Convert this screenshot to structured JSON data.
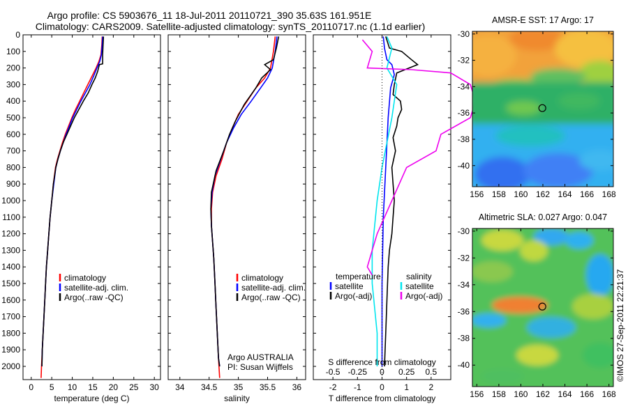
{
  "title": {
    "line1": "Argo profile: CS 5903676_11 18-Jul-2011 20110721_390 35.63S 161.951E",
    "line2": "Climatology: CARS2009. Satellite-adjusted climatology: synTS_20110717.nc (1.1d earlier)"
  },
  "watermark": "©IMOS 27-Sep-2011 22:21:37",
  "colors": {
    "climatology": "#ff0000",
    "satellite": "#0000ff",
    "argo": "#000000",
    "sal_satellite": "#00e5ee",
    "sal_argo": "#ee00ee",
    "frame": "#000000"
  },
  "chart_data": [
    {
      "type": "line",
      "id": "temperature",
      "xlabel": "temperature (deg C)",
      "xlim": [
        -2,
        31.5
      ],
      "ylim": [
        2080,
        0
      ],
      "yticks": [
        0,
        100,
        200,
        300,
        400,
        500,
        600,
        700,
        800,
        900,
        1000,
        1100,
        1200,
        1300,
        1400,
        1500,
        1600,
        1700,
        1800,
        1900,
        2000
      ],
      "xticks": [
        0,
        5,
        10,
        15,
        20,
        25,
        30
      ],
      "legend": [
        "climatology",
        "satellite-adj. clim.",
        "Argo(..raw -QC)"
      ],
      "series": [
        {
          "name": "climatology",
          "color": "#ff0000",
          "points": [
            [
              17.3,
              10
            ],
            [
              17.2,
              60
            ],
            [
              17.0,
              120
            ],
            [
              16.5,
              160
            ],
            [
              15.8,
              200
            ],
            [
              14.8,
              250
            ],
            [
              13.8,
              300
            ],
            [
              12.8,
              350
            ],
            [
              11.8,
              400
            ],
            [
              10.8,
              450
            ],
            [
              9.9,
              500
            ],
            [
              9.1,
              550
            ],
            [
              8.3,
              600
            ],
            [
              7.6,
              650
            ],
            [
              7.0,
              700
            ],
            [
              6.4,
              750
            ],
            [
              5.9,
              800
            ],
            [
              5.4,
              900
            ],
            [
              5.0,
              1000
            ],
            [
              4.6,
              1100
            ],
            [
              4.3,
              1200
            ],
            [
              4.0,
              1300
            ],
            [
              3.7,
              1400
            ],
            [
              3.5,
              1500
            ],
            [
              3.3,
              1600
            ],
            [
              3.1,
              1700
            ],
            [
              2.9,
              1800
            ],
            [
              2.7,
              1900
            ],
            [
              2.5,
              2000
            ],
            [
              2.4,
              2070
            ]
          ]
        },
        {
          "name": "satellite-adj. clim.",
          "color": "#0000ff",
          "points": [
            [
              17.4,
              10
            ],
            [
              17.3,
              60
            ],
            [
              17.1,
              120
            ],
            [
              16.7,
              160
            ],
            [
              16.0,
              200
            ],
            [
              15.2,
              250
            ],
            [
              14.3,
              300
            ],
            [
              13.2,
              350
            ],
            [
              12.1,
              400
            ],
            [
              11.1,
              450
            ],
            [
              10.1,
              500
            ],
            [
              9.3,
              550
            ],
            [
              8.5,
              600
            ],
            [
              7.8,
              650
            ],
            [
              7.1,
              700
            ],
            [
              6.5,
              750
            ],
            [
              6.0,
              800
            ],
            [
              5.5,
              900
            ],
            [
              5.0,
              1000
            ],
            [
              4.6,
              1100
            ],
            [
              4.3,
              1200
            ],
            [
              4.0,
              1300
            ],
            [
              3.7,
              1400
            ],
            [
              3.5,
              1500
            ],
            [
              3.3,
              1600
            ],
            [
              3.1,
              1700
            ],
            [
              2.9,
              1800
            ],
            [
              2.7,
              1900
            ],
            [
              2.6,
              2000
            ]
          ]
        },
        {
          "name": "Argo(..raw -QC)",
          "color": "#000000",
          "points": [
            [
              17.6,
              10
            ],
            [
              17.5,
              60
            ],
            [
              17.4,
              120
            ],
            [
              17.4,
              175
            ],
            [
              16.6,
              180
            ],
            [
              16.2,
              220
            ],
            [
              15.6,
              260
            ],
            [
              14.8,
              300
            ],
            [
              13.9,
              350
            ],
            [
              12.7,
              400
            ],
            [
              11.6,
              450
            ],
            [
              10.5,
              500
            ],
            [
              9.6,
              550
            ],
            [
              8.7,
              600
            ],
            [
              7.8,
              650
            ],
            [
              7.1,
              700
            ],
            [
              6.5,
              750
            ],
            [
              6.0,
              800
            ],
            [
              5.4,
              900
            ],
            [
              5.0,
              1000
            ],
            [
              4.6,
              1100
            ],
            [
              4.3,
              1200
            ],
            [
              4.0,
              1300
            ],
            [
              3.7,
              1400
            ],
            [
              3.5,
              1500
            ],
            [
              3.3,
              1600
            ],
            [
              3.1,
              1700
            ],
            [
              2.9,
              1800
            ],
            [
              2.7,
              1900
            ],
            [
              2.6,
              2000
            ]
          ]
        }
      ]
    },
    {
      "type": "line",
      "id": "salinity",
      "xlabel": "salinity",
      "xlim": [
        33.8,
        36.15
      ],
      "ylim": [
        2080,
        0
      ],
      "xticks": [
        34,
        34.5,
        35,
        35.5,
        36
      ],
      "legend": [
        "climatology",
        "satellite-adj. clim.",
        "Argo(..raw -QC)"
      ],
      "annotation": {
        "line1": "Argo AUSTRALIA",
        "line2": "PI: Susan Wijffels"
      },
      "series": [
        {
          "name": "climatology",
          "color": "#ff0000",
          "points": [
            [
              35.63,
              10
            ],
            [
              35.6,
              100
            ],
            [
              35.55,
              200
            ],
            [
              35.45,
              260
            ],
            [
              35.3,
              320
            ],
            [
              35.15,
              400
            ],
            [
              35.0,
              480
            ],
            [
              34.9,
              560
            ],
            [
              34.8,
              650
            ],
            [
              34.72,
              750
            ],
            [
              34.62,
              850
            ],
            [
              34.56,
              950
            ],
            [
              34.54,
              1050
            ],
            [
              34.54,
              1150
            ],
            [
              34.56,
              1250
            ],
            [
              34.58,
              1350
            ],
            [
              34.6,
              1500
            ],
            [
              34.62,
              1650
            ],
            [
              34.64,
              1800
            ],
            [
              34.66,
              1950
            ],
            [
              34.68,
              2070
            ]
          ]
        },
        {
          "name": "satellite-adj. clim.",
          "color": "#0000ff",
          "points": [
            [
              35.66,
              10
            ],
            [
              35.63,
              100
            ],
            [
              35.58,
              200
            ],
            [
              35.5,
              260
            ],
            [
              35.38,
              320
            ],
            [
              35.22,
              400
            ],
            [
              35.05,
              480
            ],
            [
              34.92,
              560
            ],
            [
              34.8,
              650
            ],
            [
              34.7,
              750
            ],
            [
              34.6,
              850
            ],
            [
              34.55,
              950
            ],
            [
              34.53,
              1050
            ],
            [
              34.54,
              1150
            ],
            [
              34.56,
              1250
            ],
            [
              34.58,
              1350
            ],
            [
              34.6,
              1500
            ],
            [
              34.62,
              1650
            ],
            [
              34.64,
              1800
            ],
            [
              34.66,
              1950
            ],
            [
              34.68,
              2000
            ]
          ]
        },
        {
          "name": "Argo(..raw -QC)",
          "color": "#000000",
          "points": [
            [
              35.69,
              10
            ],
            [
              35.65,
              80
            ],
            [
              35.6,
              150
            ],
            [
              35.45,
              180
            ],
            [
              35.55,
              210
            ],
            [
              35.4,
              260
            ],
            [
              35.3,
              320
            ],
            [
              35.1,
              420
            ],
            [
              34.95,
              520
            ],
            [
              34.85,
              600
            ],
            [
              34.75,
              700
            ],
            [
              34.62,
              820
            ],
            [
              34.54,
              950
            ],
            [
              34.53,
              1050
            ],
            [
              34.54,
              1150
            ],
            [
              34.56,
              1250
            ],
            [
              34.58,
              1350
            ],
            [
              34.6,
              1500
            ],
            [
              34.62,
              1650
            ],
            [
              34.64,
              1800
            ],
            [
              34.66,
              1950
            ],
            [
              34.68,
              2000
            ]
          ]
        }
      ]
    },
    {
      "type": "line",
      "id": "difference",
      "xlabel": "T difference from climatology",
      "x2label": "S difference from climatology",
      "xlim": [
        -2.8,
        2.8
      ],
      "ylim": [
        2080,
        0
      ],
      "xticks": [
        -2,
        -1,
        0,
        1,
        2
      ],
      "x2ticks": [
        "-0.5",
        "-0.25",
        "0",
        "0.25",
        "0.5"
      ],
      "legend_temperature": {
        "header": "temperature",
        "items": [
          "satellite",
          "Argo(-adj)"
        ]
      },
      "legend_salinity": {
        "header": "salinity",
        "items": [
          "satellite",
          "Argo(-adj)"
        ]
      },
      "series": [
        {
          "name": "satellite",
          "group": "temperature",
          "color": "#0000ff",
          "points": [
            [
              0.05,
              10
            ],
            [
              0.1,
              80
            ],
            [
              0.2,
              150
            ],
            [
              0.4,
              180
            ],
            [
              0.5,
              240
            ],
            [
              0.35,
              320
            ],
            [
              0.25,
              500
            ],
            [
              0.15,
              800
            ],
            [
              0.05,
              1100
            ],
            [
              0,
              1500
            ],
            [
              0,
              2000
            ]
          ]
        },
        {
          "name": "Argo(-adj)",
          "group": "temperature",
          "color": "#000000",
          "points": [
            [
              0.15,
              10
            ],
            [
              0.3,
              80
            ],
            [
              0.8,
              100
            ],
            [
              1.2,
              150
            ],
            [
              1.45,
              180
            ],
            [
              0.6,
              230
            ],
            [
              0.5,
              300
            ],
            [
              0.45,
              360
            ],
            [
              0.75,
              400
            ],
            [
              0.8,
              450
            ],
            [
              0.65,
              500
            ],
            [
              0.6,
              550
            ],
            [
              0.45,
              620
            ],
            [
              0.55,
              700
            ],
            [
              0.4,
              800
            ],
            [
              0.45,
              900
            ],
            [
              0.5,
              1000
            ],
            [
              0.45,
              1100
            ],
            [
              0.4,
              1200
            ],
            [
              0.3,
              1300
            ],
            [
              0.25,
              1400
            ],
            [
              0.2,
              1600
            ],
            [
              0.15,
              1800
            ],
            [
              0.1,
              2000
            ]
          ]
        },
        {
          "name": "satellite",
          "group": "salinity",
          "color": "#00e5ee",
          "points": [
            [
              0.05,
              10
            ],
            [
              0.1,
              80
            ],
            [
              0.05,
              200
            ],
            [
              0.15,
              300
            ],
            [
              0.1,
              500
            ],
            [
              0,
              800
            ],
            [
              -0.05,
              1000
            ],
            [
              -0.1,
              1300
            ],
            [
              -0.1,
              1500
            ],
            [
              -0.05,
              1800
            ],
            [
              -0.05,
              2000
            ]
          ]
        },
        {
          "name": "Argo(-adj)",
          "group": "salinity",
          "color": "#ee00ee",
          "points": [
            [
              -0.2,
              30
            ],
            [
              -0.1,
              100
            ],
            [
              -0.15,
              200
            ],
            [
              0.3,
              210
            ],
            [
              0.7,
              230
            ],
            [
              0.9,
              300
            ],
            [
              0.95,
              400
            ],
            [
              0.9,
              500
            ],
            [
              0.6,
              600
            ],
            [
              0.55,
              700
            ],
            [
              0.25,
              800
            ],
            [
              0.1,
              1000
            ],
            [
              -0.05,
              1200
            ],
            [
              -0.1,
              1300
            ],
            [
              -0.15,
              1400
            ],
            [
              -0.1,
              1450
            ]
          ]
        }
      ]
    },
    {
      "type": "heatmap",
      "id": "sst-map",
      "title": "AMSR-E SST: 17 Argo: 17",
      "xlim": [
        155.6,
        168.4
      ],
      "ylim": [
        -41.6,
        -29.8
      ],
      "xticks": [
        156,
        158,
        160,
        162,
        164,
        166,
        168
      ],
      "yticks": [
        -30,
        -32,
        -34,
        -36,
        -38,
        -40
      ],
      "marker": {
        "lon": 161.951,
        "lat": -35.63
      }
    },
    {
      "type": "heatmap",
      "id": "sla-map",
      "title": "Altimetric SLA: 0.027 Argo: 0.047",
      "xlim": [
        155.6,
        168.4
      ],
      "ylim": [
        -41.6,
        -29.8
      ],
      "xticks": [
        156,
        158,
        160,
        162,
        164,
        166,
        168
      ],
      "yticks": [
        -30,
        -32,
        -34,
        -36,
        -38,
        -40
      ],
      "marker": {
        "lon": 161.951,
        "lat": -35.63
      }
    }
  ]
}
